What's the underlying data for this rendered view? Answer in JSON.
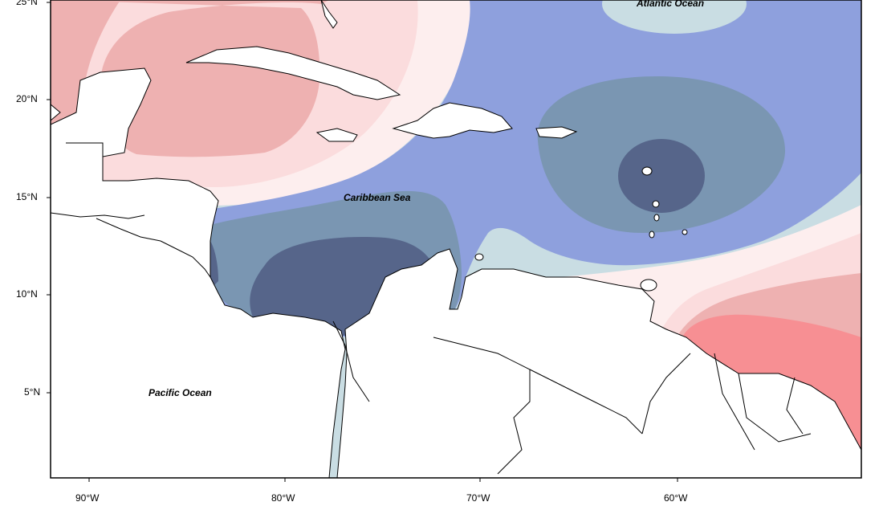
{
  "map": {
    "latitude_ticks": [
      "25°N",
      "20°N",
      "15°N",
      "10°N",
      "5°N"
    ],
    "longitude_ticks": [
      "90°W",
      "80°W",
      "70°W",
      "60°W"
    ],
    "water_labels": {
      "atlantic": "Atlantic Ocean",
      "caribbean": "Caribbean Sea",
      "pacific": "Pacific Ocean"
    },
    "colors": {
      "land": "#ffffff",
      "coast": "#000000",
      "red_strong": "#f78f93",
      "red_medium": "#eeb1b1",
      "red_light": "#fbdcdd",
      "near_zero_warm": "#fdeeee",
      "near_zero_cool": "#c9dde3",
      "blue_light": "#8ea0dd",
      "blue_medium": "#7a96b2",
      "blue_dark": "#56658a"
    }
  }
}
